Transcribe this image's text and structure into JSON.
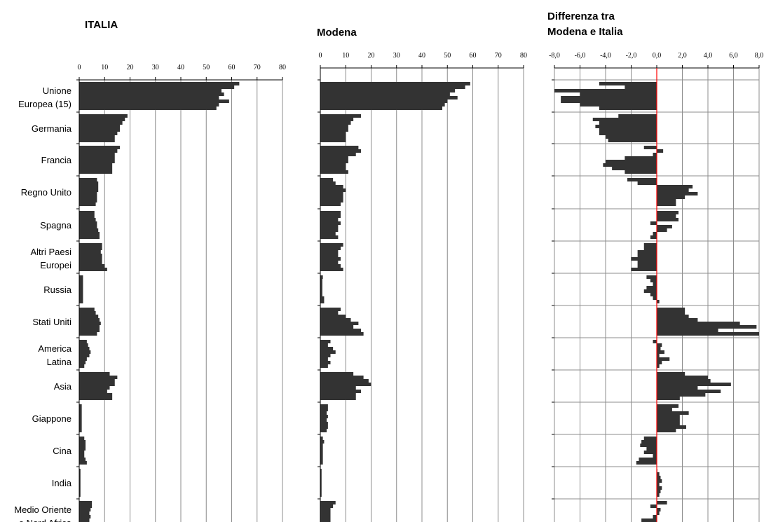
{
  "chart_data": [
    {
      "type": "bar",
      "orientation": "horizontal",
      "title": "ITALIA",
      "xlim": [
        0,
        80
      ],
      "ticks": [
        "0",
        "10",
        "20",
        "30",
        "40",
        "50",
        "60",
        "70",
        "80"
      ],
      "grid": true,
      "categories": [
        "Unione Europea (15)",
        "Germania",
        "Francia",
        "Regno Unito",
        "Spagna",
        "Altri Paesi Europei",
        "Russia",
        "Stati Uniti",
        "America Latina",
        "Asia",
        "Giappone",
        "Cina",
        "India",
        "Medio Oriente e Nord Africa"
      ],
      "values": [
        [
          63,
          61,
          56,
          57,
          55,
          59,
          55,
          54
        ],
        [
          19,
          18,
          17,
          16,
          16,
          15,
          14,
          14
        ],
        [
          16,
          15,
          14,
          14,
          14,
          13,
          13,
          13
        ],
        [
          7,
          7.5,
          7.5,
          7.5,
          7,
          7,
          7,
          6.5
        ],
        [
          6,
          6,
          6.5,
          7,
          7,
          7.5,
          8,
          8
        ],
        [
          9,
          9,
          8.5,
          9,
          9,
          9,
          10,
          11
        ],
        [
          1.5,
          1.5,
          1.5,
          1.5,
          1.5,
          1.5,
          1.5,
          1.5
        ],
        [
          6,
          6.5,
          7.5,
          8,
          8.5,
          8,
          8,
          7
        ],
        [
          3,
          3.5,
          4,
          4.5,
          4,
          3,
          2.5,
          2
        ],
        [
          12,
          15,
          14,
          14,
          12,
          11,
          13,
          13
        ],
        [
          1,
          1,
          1,
          1,
          1,
          1,
          1,
          1
        ],
        [
          2,
          2.5,
          2.5,
          2.5,
          2,
          2,
          2.5,
          3
        ],
        [
          0.5,
          0.5,
          0.5,
          0.5,
          0.5,
          0.5,
          0.5,
          0.5
        ],
        [
          5,
          5,
          4.5,
          4,
          4.5,
          4,
          4,
          4
        ]
      ]
    },
    {
      "type": "bar",
      "orientation": "horizontal",
      "title": "Modena",
      "xlim": [
        0,
        80
      ],
      "ticks": [
        "0",
        "10",
        "20",
        "30",
        "40",
        "50",
        "60",
        "70",
        "80"
      ],
      "grid": true,
      "categories": [
        "Unione Europea (15)",
        "Germania",
        "Francia",
        "Regno Unito",
        "Spagna",
        "Altri Paesi Europei",
        "Russia",
        "Stati Uniti",
        "America Latina",
        "Asia",
        "Giappone",
        "Cina",
        "India",
        "Medio Oriente e Nord Africa"
      ],
      "values": [
        [
          59,
          57,
          53,
          51,
          54,
          50,
          49,
          48
        ],
        [
          16,
          13,
          12,
          11,
          11,
          10,
          10,
          10
        ],
        [
          15,
          16,
          14,
          11,
          11,
          10,
          10,
          11
        ],
        [
          5,
          6,
          9,
          10,
          9,
          9,
          9,
          8
        ],
        [
          8,
          8,
          7,
          8,
          7,
          7,
          6,
          7
        ],
        [
          9,
          8,
          7,
          7,
          8,
          7,
          8,
          9
        ],
        [
          1,
          0.8,
          0.8,
          0.8,
          0.8,
          0.8,
          1.5,
          1.5
        ],
        [
          8,
          7,
          10,
          12,
          15,
          13,
          16,
          17
        ],
        [
          4,
          3,
          5,
          6,
          4,
          3,
          4,
          3
        ],
        [
          13,
          17,
          19,
          20,
          14,
          16,
          14,
          14
        ],
        [
          3,
          3,
          2.5,
          3,
          2.5,
          3,
          3,
          2.5
        ],
        [
          1,
          1.5,
          1,
          1,
          1,
          1,
          1,
          1
        ],
        [
          0.5,
          0.5,
          0.5,
          0.5,
          0.5,
          0.5,
          0.5,
          0.5
        ],
        [
          6,
          5,
          4,
          4,
          4,
          4,
          4,
          4
        ]
      ]
    },
    {
      "type": "bar",
      "orientation": "horizontal",
      "title": "Differenza tra Modena e Italia",
      "xlim": [
        -8,
        8
      ],
      "ticks": [
        "-8,0",
        "-6,0",
        "-4,0",
        "-2,0",
        "0,0",
        "2,0",
        "4,0",
        "6,0",
        "8,0"
      ],
      "grid": true,
      "categories": [
        "Unione Europea (15)",
        "Germania",
        "Francia",
        "Regno Unito",
        "Spagna",
        "Altri Paesi Europei",
        "Russia",
        "Stati Uniti",
        "America Latina",
        "Asia",
        "Giappone",
        "Cina",
        "India",
        "Medio Oriente e Nord Africa"
      ],
      "values": [
        [
          -4.5,
          -2.5,
          -8,
          -6,
          -7.5,
          -7.5,
          -6,
          -4.5
        ],
        [
          -3,
          -5,
          -4.5,
          -4.8,
          -4.5,
          -4.5,
          -4,
          -3.8
        ],
        [
          -1,
          0.5,
          -0.3,
          -2.5,
          -4,
          -4.2,
          -3.5,
          -2.5
        ],
        [
          -2.3,
          -1.5,
          2.8,
          2.5,
          3.2,
          2.2,
          1.5,
          1.5
        ],
        [
          1.7,
          1.5,
          1.7,
          -0.5,
          1.2,
          0.8,
          -0.3,
          -0.5
        ],
        [
          -1,
          -1,
          -1.5,
          -1.5,
          -2,
          -1.5,
          -1.5,
          -2
        ],
        [
          -0.8,
          -0.5,
          -0.3,
          -0.8,
          -1,
          -0.5,
          -0.3,
          0.2
        ],
        [
          2.2,
          2.2,
          2.5,
          3.2,
          6.5,
          7.8,
          4.8,
          8
        ],
        [
          -0.3,
          0.4,
          0.3,
          0.6,
          0.2,
          1,
          0.4,
          0.2
        ],
        [
          2.2,
          4,
          4.2,
          5.8,
          3.2,
          5,
          3.8,
          1.8
        ],
        [
          1.7,
          1.2,
          2.5,
          1.8,
          1.8,
          1.8,
          2.3,
          1.5
        ],
        [
          -1,
          -1.2,
          -1.3,
          -0.8,
          -1,
          -0.3,
          -1.4,
          -1.6
        ],
        [
          0,
          0.2,
          0.3,
          0.4,
          0.2,
          0.4,
          0.3,
          0.2
        ],
        [
          0.8,
          -0.5,
          0.3,
          0.2,
          -0.3,
          -1.2,
          0.2,
          -0.4
        ]
      ]
    }
  ]
}
